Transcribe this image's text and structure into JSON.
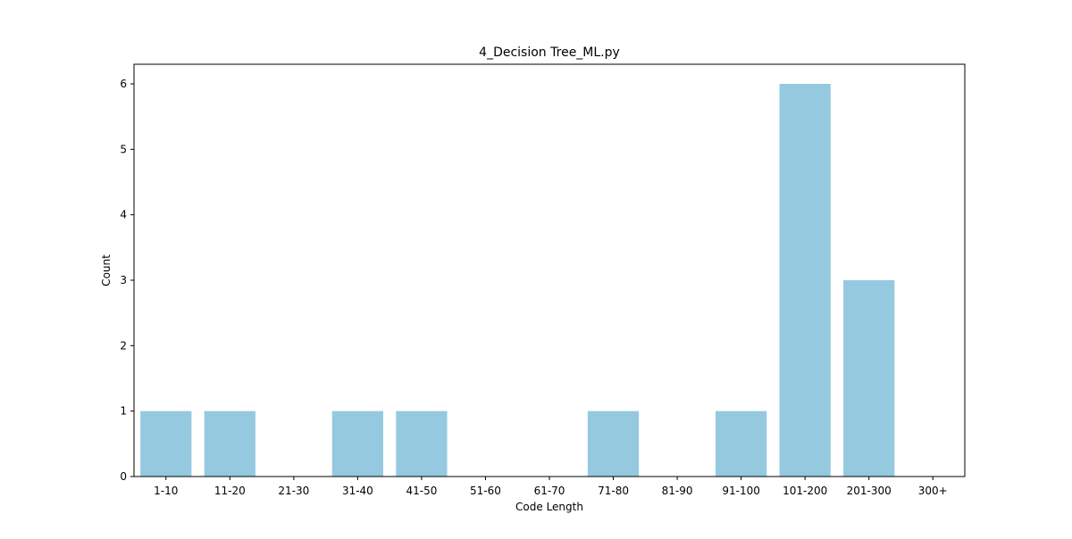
{
  "chart_data": {
    "type": "bar",
    "title": "4_Decision Tree_ML.py",
    "xlabel": "Code Length",
    "ylabel": "Count",
    "categories": [
      "1-10",
      "11-20",
      "21-30",
      "31-40",
      "41-50",
      "51-60",
      "61-70",
      "71-80",
      "81-90",
      "91-100",
      "101-200",
      "201-300",
      "300+"
    ],
    "values": [
      1,
      1,
      0,
      1,
      1,
      0,
      0,
      1,
      0,
      1,
      6,
      3,
      0
    ],
    "ylim": [
      0,
      6.3
    ],
    "yticks": [
      0,
      1,
      2,
      3,
      4,
      5,
      6
    ],
    "grid": false,
    "legend": "none",
    "colors": {
      "bar": "#95c9df",
      "axis": "#000000"
    }
  }
}
